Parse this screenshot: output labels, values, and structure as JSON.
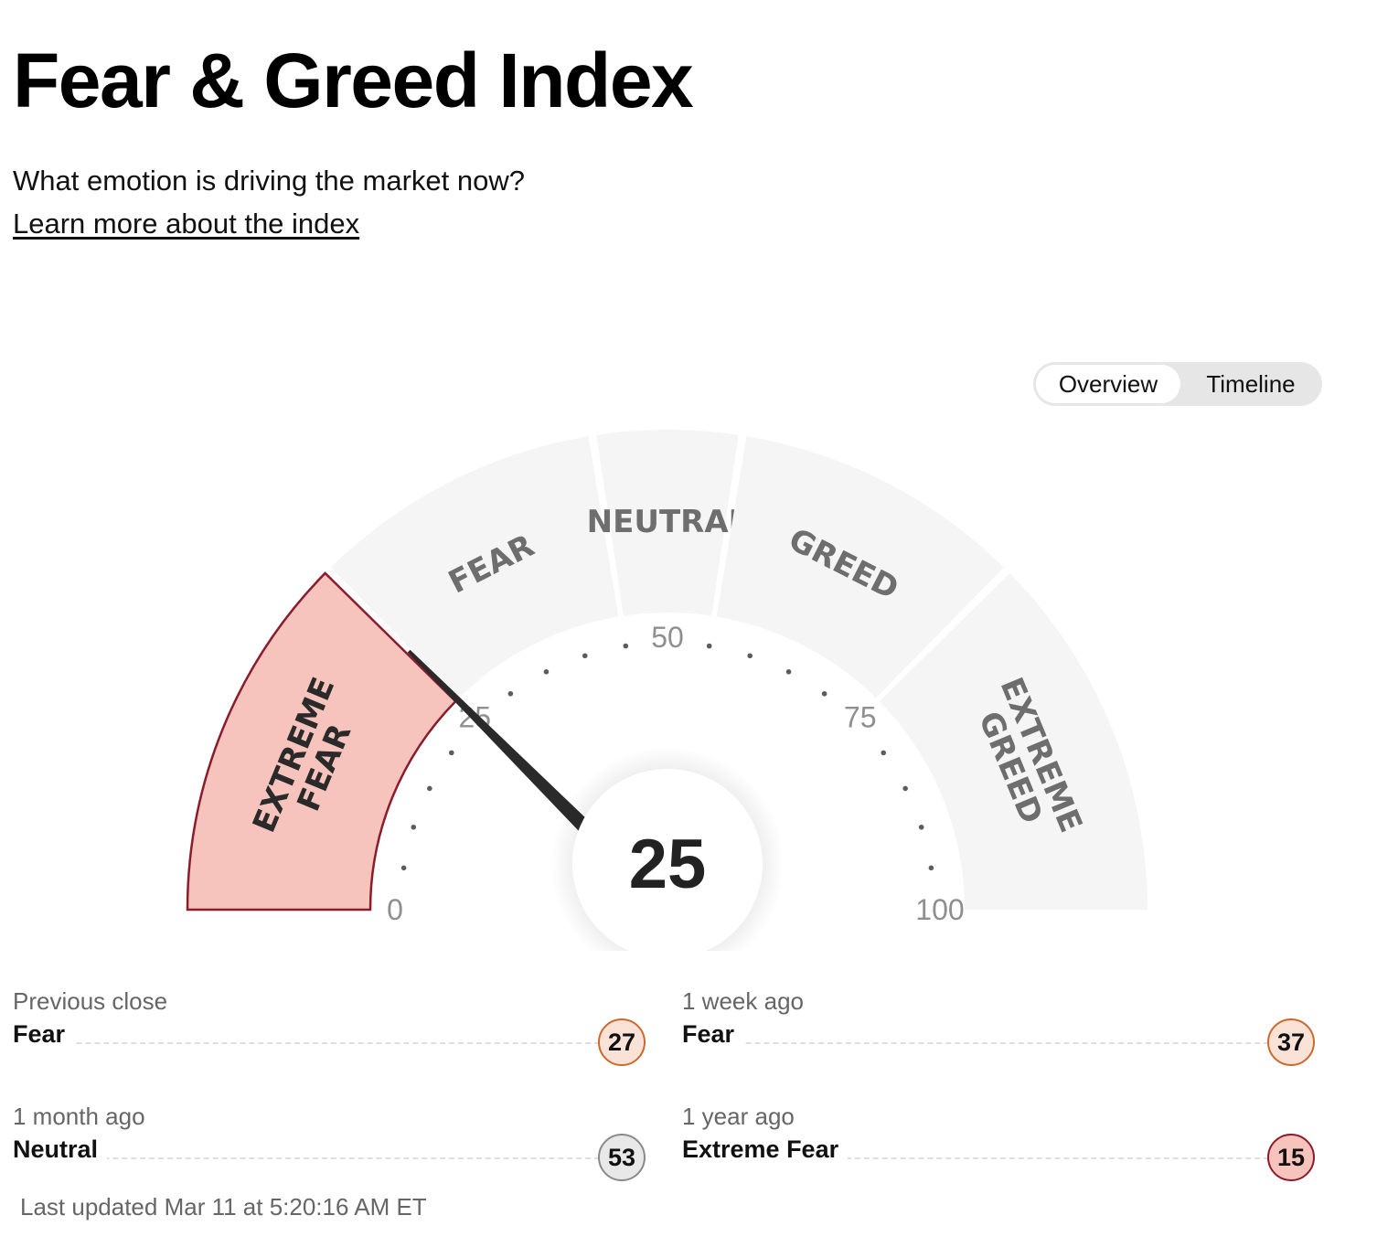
{
  "title": "Fear & Greed Index",
  "subtitle": "What emotion is driving the market now?",
  "learn_more_link": "Learn more about the index",
  "view_toggle": {
    "options": [
      "Overview",
      "Timeline"
    ],
    "selected": "Overview"
  },
  "gauge": {
    "value": 25,
    "value_label": "25",
    "range": [
      0,
      100
    ],
    "active_segment": "EXTREME FEAR",
    "segments": [
      {
        "lines": [
          "EXTREME",
          "FEAR"
        ],
        "from": 0,
        "to": 25
      },
      {
        "lines": [
          "FEAR"
        ],
        "from": 25,
        "to": 45
      },
      {
        "lines": [
          "NEUTRAL"
        ],
        "from": 45,
        "to": 55
      },
      {
        "lines": [
          "GREED"
        ],
        "from": 55,
        "to": 75
      },
      {
        "lines": [
          "EXTREME",
          "GREED"
        ],
        "from": 75,
        "to": 100
      }
    ],
    "scale_labels": [
      "0",
      "25",
      "50",
      "75",
      "100"
    ],
    "colors": {
      "inactive_fill": "#f5f5f5",
      "active_fill": "#f7c4bd",
      "active_stroke": "#8a1c2b",
      "segment_text": "#6e6e6e",
      "active_text": "#2a2a2a",
      "needle": "#2a2a2a"
    }
  },
  "history": [
    {
      "label": "Previous close",
      "rating": "Fear",
      "value": "27",
      "fill": "#fbe2d6",
      "border": "#c96a2e"
    },
    {
      "label": "1 week ago",
      "rating": "Fear",
      "value": "37",
      "fill": "#fbe2d6",
      "border": "#c96a2e"
    },
    {
      "label": "1 month ago",
      "rating": "Neutral",
      "value": "53",
      "fill": "#e8e8e8",
      "border": "#8a8a8a"
    },
    {
      "label": "1 year ago",
      "rating": "Extreme Fear",
      "value": "15",
      "fill": "#f7c4bd",
      "border": "#8a1c2b"
    }
  ],
  "last_updated": "Last updated Mar 11 at 5:20:16 AM ET"
}
